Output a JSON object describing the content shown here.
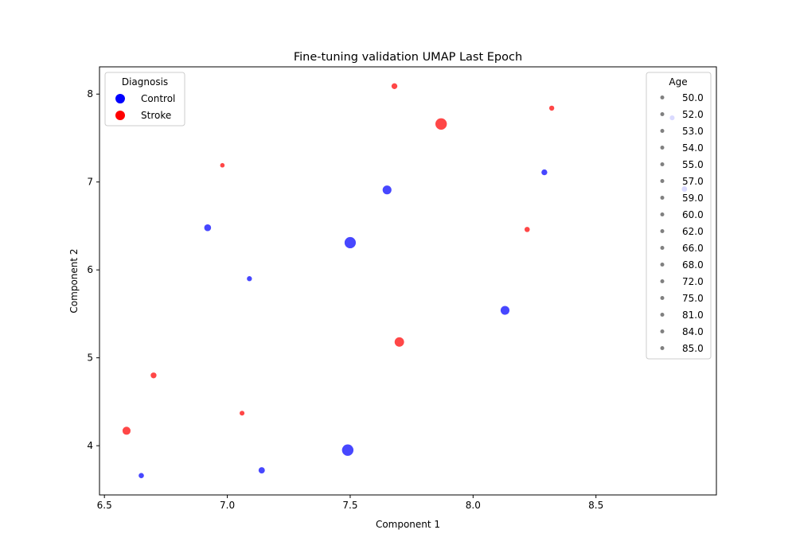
{
  "chart_data": {
    "type": "scatter",
    "title": "Fine-tuning validation UMAP Last Epoch",
    "xlabel": "Component 1",
    "ylabel": "Component 2",
    "xlim": [
      6.48,
      8.99
    ],
    "ylim": [
      3.44,
      8.31
    ],
    "xticks": [
      6.5,
      7.0,
      7.5,
      8.0,
      8.5
    ],
    "xtick_labels": [
      "6.5",
      "7.0",
      "7.5",
      "8.0",
      "8.5"
    ],
    "yticks": [
      4,
      5,
      6,
      7,
      8
    ],
    "ytick_labels": [
      "4",
      "5",
      "6",
      "7",
      "8"
    ],
    "grid": false,
    "colors": {
      "Control": "#0000ff",
      "Stroke": "#ff0000",
      "age_marker": "#808080"
    },
    "legend_diagnosis": {
      "title": "Diagnosis",
      "placement": "top-left",
      "entries": [
        "Control",
        "Stroke"
      ]
    },
    "legend_age": {
      "title": "Age",
      "placement": "top-right",
      "entries": [
        "50.0",
        "52.0",
        "53.0",
        "54.0",
        "55.0",
        "57.0",
        "59.0",
        "60.0",
        "62.0",
        "66.0",
        "68.0",
        "72.0",
        "75.0",
        "81.0",
        "84.0",
        "85.0"
      ]
    },
    "series": [
      {
        "name": "Control",
        "points": [
          {
            "x": 6.65,
            "y": 3.66,
            "age": 54
          },
          {
            "x": 7.14,
            "y": 3.72,
            "age": 59
          },
          {
            "x": 7.49,
            "y": 3.95,
            "age": 85
          },
          {
            "x": 6.92,
            "y": 6.48,
            "age": 62
          },
          {
            "x": 7.09,
            "y": 5.9,
            "age": 53
          },
          {
            "x": 7.5,
            "y": 6.31,
            "age": 84
          },
          {
            "x": 7.65,
            "y": 6.91,
            "age": 72
          },
          {
            "x": 8.13,
            "y": 5.54,
            "age": 72
          },
          {
            "x": 8.29,
            "y": 7.11,
            "age": 57
          },
          {
            "x": 8.81,
            "y": 7.73,
            "age": 52
          },
          {
            "x": 8.86,
            "y": 6.92,
            "age": 55
          }
        ]
      },
      {
        "name": "Stroke",
        "points": [
          {
            "x": 6.59,
            "y": 4.17,
            "age": 68
          },
          {
            "x": 6.7,
            "y": 4.8,
            "age": 57
          },
          {
            "x": 6.98,
            "y": 7.19,
            "age": 50
          },
          {
            "x": 7.06,
            "y": 4.37,
            "age": 52
          },
          {
            "x": 7.68,
            "y": 8.09,
            "age": 57
          },
          {
            "x": 7.7,
            "y": 5.18,
            "age": 75
          },
          {
            "x": 7.87,
            "y": 7.66,
            "age": 85
          },
          {
            "x": 8.22,
            "y": 6.46,
            "age": 54
          },
          {
            "x": 8.32,
            "y": 7.84,
            "age": 53
          }
        ]
      }
    ]
  }
}
